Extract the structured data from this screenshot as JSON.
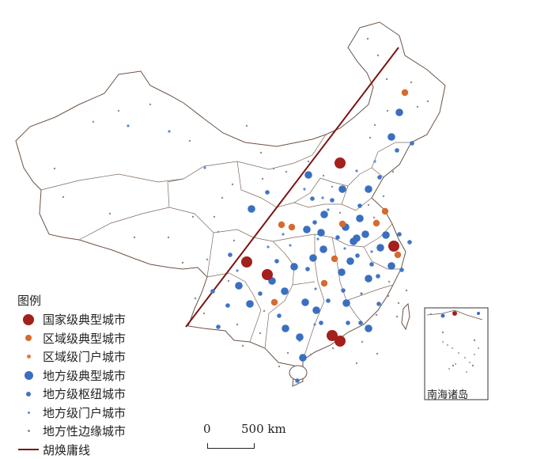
{
  "legend": {
    "title": "图例",
    "items": [
      {
        "key": "national",
        "label": "国家级典型城市",
        "color": "#a3201d",
        "size": 14
      },
      {
        "key": "regional_typical",
        "label": "区域级典型城市",
        "color": "#d66a2f",
        "size": 8
      },
      {
        "key": "regional_gateway",
        "label": "区域级门户城市",
        "color": "#e07a3c",
        "size": 5
      },
      {
        "key": "local_typical",
        "label": "地方级典型城市",
        "color": "#3a6fbf",
        "size": 11
      },
      {
        "key": "local_hub",
        "label": "地方级枢纽城市",
        "color": "#3f75c4",
        "size": 6
      },
      {
        "key": "local_gateway",
        "label": "地方级门户城市",
        "color": "#5b8ad0",
        "size": 3
      },
      {
        "key": "local_edge",
        "label": "地方性边缘城市",
        "color": "#8d8d8d",
        "size": 3
      }
    ],
    "line_item": {
      "label": "胡焕庸线",
      "color": "#7a1512"
    }
  },
  "scale_bar": {
    "zero": "0",
    "text": "500 km"
  },
  "inset": {
    "label": "南海诸岛"
  },
  "colors": {
    "border": "#6b5346",
    "hu_line": "#7a1512"
  },
  "cities": {
    "national": [
      [
        430,
        206
      ],
      [
        498,
        311
      ],
      [
        312,
        331
      ],
      [
        338,
        347
      ],
      [
        420,
        424
      ],
      [
        430,
        431
      ]
    ],
    "regional_typical": [
      [
        512,
        117
      ],
      [
        433,
        283
      ],
      [
        476,
        282
      ],
      [
        503,
        322
      ],
      [
        356,
        284
      ],
      [
        423,
        327
      ],
      [
        410,
        358
      ],
      [
        369,
        287
      ],
      [
        347,
        382
      ],
      [
        487,
        267
      ]
    ],
    "local_typical": [
      [
        505,
        142
      ],
      [
        495,
        173
      ],
      [
        466,
        239
      ],
      [
        433,
        239
      ],
      [
        410,
        271
      ],
      [
        437,
        287
      ],
      [
        462,
        296
      ],
      [
        447,
        305
      ],
      [
        388,
        290
      ],
      [
        396,
        326
      ],
      [
        372,
        337
      ],
      [
        360,
        368
      ],
      [
        344,
        355
      ],
      [
        432,
        344
      ],
      [
        466,
        352
      ],
      [
        495,
        336
      ],
      [
        481,
        313
      ],
      [
        455,
        276
      ],
      [
        451,
        301
      ],
      [
        409,
        315
      ],
      [
        438,
        383
      ],
      [
        400,
        392
      ],
      [
        379,
        426
      ],
      [
        361,
        415
      ],
      [
        316,
        384
      ],
      [
        302,
        361
      ],
      [
        390,
        221
      ],
      [
        318,
        264
      ],
      [
        406,
        294
      ],
      [
        488,
        297
      ],
      [
        466,
        415
      ],
      [
        386,
        382
      ],
      [
        383,
        452
      ],
      [
        443,
        330
      ]
    ],
    "local_hub": [
      [
        420,
        253
      ],
      [
        452,
        323
      ],
      [
        427,
        300
      ],
      [
        395,
        251
      ],
      [
        350,
        330
      ],
      [
        478,
        349
      ],
      [
        470,
        334
      ],
      [
        329,
        371
      ],
      [
        353,
        399
      ],
      [
        415,
        380
      ],
      [
        455,
        260
      ],
      [
        505,
        296
      ],
      [
        456,
        408
      ],
      [
        389,
        340
      ],
      [
        398,
        281
      ],
      [
        434,
        367
      ],
      [
        480,
        224
      ],
      [
        502,
        190
      ],
      [
        521,
        181
      ],
      [
        338,
        243
      ],
      [
        291,
        322
      ],
      [
        288,
        386
      ],
      [
        276,
        413
      ],
      [
        269,
        368
      ],
      [
        406,
        408
      ],
      [
        440,
        408
      ],
      [
        508,
        341
      ],
      [
        479,
        384
      ],
      [
        376,
        481
      ],
      [
        518,
        306
      ]
    ],
    "local_gateway": [
      [
        162,
        159
      ],
      [
        214,
        166
      ],
      [
        259,
        212
      ],
      [
        358,
        296
      ],
      [
        300,
        342
      ],
      [
        474,
        204
      ],
      [
        451,
        216
      ],
      [
        408,
        250
      ],
      [
        415,
        265
      ],
      [
        367,
        310
      ],
      [
        399,
        365
      ],
      [
        436,
        314
      ],
      [
        398,
        410
      ],
      [
        457,
        371
      ],
      [
        339,
        312
      ],
      [
        385,
        239
      ],
      [
        402,
        302
      ],
      [
        470,
        318
      ]
    ],
    "local_edge": [
      [
        465,
        49
      ],
      [
        478,
        70
      ],
      [
        489,
        100
      ],
      [
        520,
        104
      ],
      [
        528,
        135
      ],
      [
        541,
        128
      ],
      [
        490,
        140
      ],
      [
        474,
        158
      ],
      [
        468,
        174
      ],
      [
        497,
        217
      ],
      [
        485,
        248
      ],
      [
        466,
        259
      ],
      [
        473,
        275
      ],
      [
        430,
        269
      ],
      [
        420,
        236
      ],
      [
        409,
        222
      ],
      [
        390,
        204
      ],
      [
        362,
        217
      ],
      [
        346,
        213
      ],
      [
        332,
        226
      ],
      [
        281,
        250
      ],
      [
        294,
        233
      ],
      [
        271,
        274
      ],
      [
        244,
        274
      ],
      [
        213,
        300
      ],
      [
        170,
        300
      ],
      [
        139,
        270
      ],
      [
        80,
        249
      ],
      [
        69,
        213
      ],
      [
        118,
        154
      ],
      [
        150,
        140
      ],
      [
        190,
        132
      ],
      [
        240,
        178
      ],
      [
        312,
        159
      ],
      [
        330,
        193
      ],
      [
        276,
        293
      ],
      [
        262,
        328
      ],
      [
        296,
        304
      ],
      [
        231,
        332
      ],
      [
        289,
        355
      ],
      [
        247,
        377
      ],
      [
        258,
        396
      ],
      [
        300,
        410
      ],
      [
        329,
        421
      ],
      [
        379,
        431
      ],
      [
        393,
        448
      ],
      [
        421,
        440
      ],
      [
        458,
        432
      ],
      [
        476,
        398
      ],
      [
        491,
        374
      ],
      [
        504,
        383
      ],
      [
        514,
        367
      ],
      [
        492,
        356
      ],
      [
        477,
        447
      ],
      [
        364,
        446
      ],
      [
        334,
        393
      ],
      [
        307,
        437
      ],
      [
        353,
        463
      ],
      [
        451,
        459
      ],
      [
        502,
        400
      ],
      [
        545,
        397
      ],
      [
        560,
        420
      ],
      [
        600,
        430
      ],
      [
        573,
        462
      ],
      [
        598,
        462
      ]
    ]
  }
}
